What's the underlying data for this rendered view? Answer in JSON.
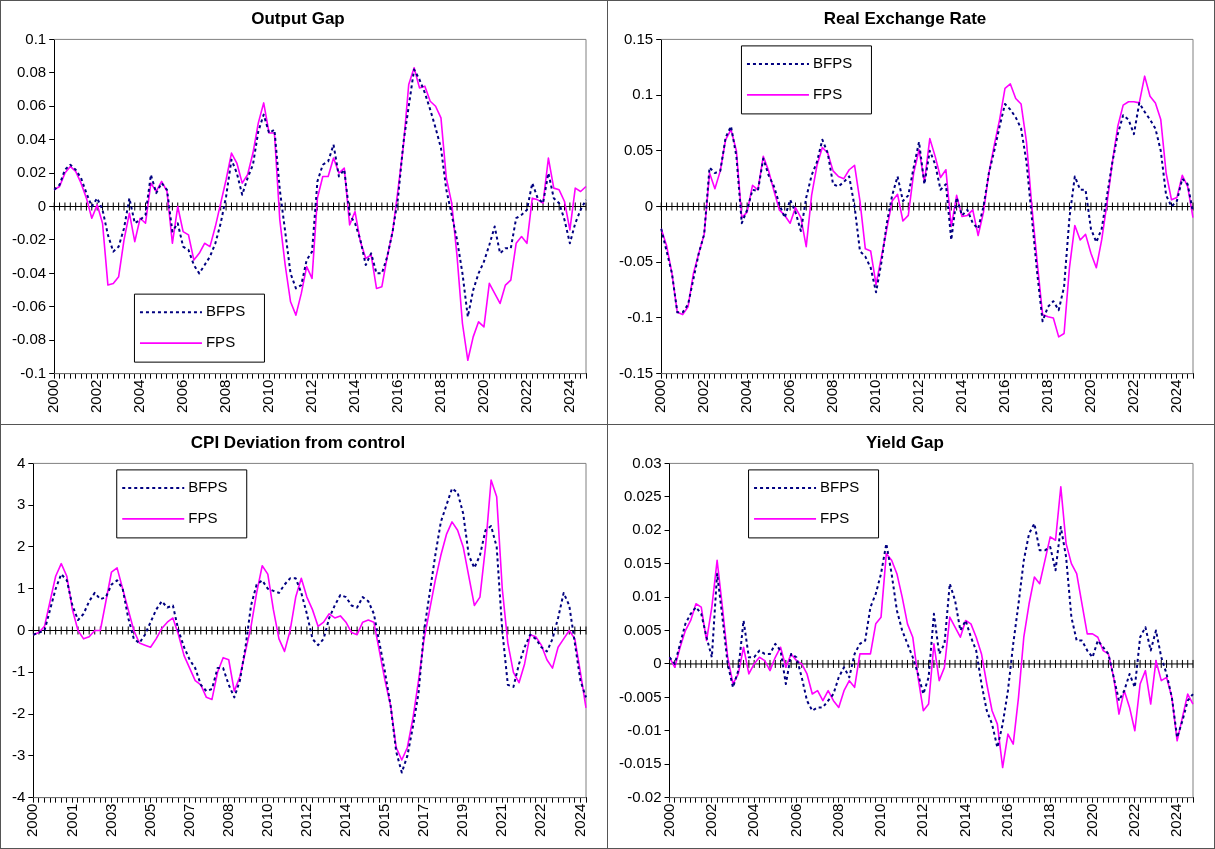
{
  "chart_data": [
    {
      "type": "line",
      "title": "Output Gap",
      "legend": "bottom left",
      "categories": [
        "2000",
        null,
        null,
        null,
        null,
        null,
        null,
        null,
        "2002",
        null,
        null,
        null,
        null,
        null,
        null,
        null,
        "2004",
        null,
        null,
        null,
        null,
        null,
        null,
        null,
        "2006",
        null,
        null,
        null,
        null,
        null,
        null,
        null,
        "2008",
        null,
        null,
        null,
        null,
        null,
        null,
        null,
        "2010",
        null,
        null,
        null,
        null,
        null,
        null,
        null,
        "2012",
        null,
        null,
        null,
        null,
        null,
        null,
        null,
        "2014",
        null,
        null,
        null,
        null,
        null,
        null,
        null,
        "2016",
        null,
        null,
        null,
        null,
        null,
        null,
        null,
        "2018",
        null,
        null,
        null,
        null,
        null,
        null,
        null,
        "2020",
        null,
        null,
        null,
        null,
        null,
        null,
        null,
        "2022",
        null,
        null,
        null,
        null,
        null,
        null,
        null,
        "2024",
        null,
        null,
        null
      ],
      "ylim": [
        -0.1,
        0.1
      ],
      "yticks": [
        -0.1,
        -0.08,
        -0.06,
        -0.04,
        -0.02,
        0,
        0.02,
        0.04,
        0.06,
        0.08,
        0.1
      ],
      "series": [
        {
          "name": "BFPS",
          "color": "#000080",
          "line_style": "dashed",
          "values": [
            0.01,
            0.013,
            0.022,
            0.025,
            0.022,
            0.017,
            0.008,
            0.0,
            0.005,
            -0.002,
            -0.017,
            -0.027,
            -0.024,
            -0.013,
            0.005,
            -0.01,
            -0.008,
            -0.005,
            0.019,
            0.008,
            0.014,
            0.01,
            -0.015,
            -0.01,
            -0.024,
            -0.026,
            -0.035,
            -0.04,
            -0.035,
            -0.03,
            -0.022,
            -0.01,
            0.006,
            0.028,
            0.02,
            0.007,
            0.017,
            0.025,
            0.045,
            0.055,
            0.044,
            0.046,
            0.01,
            -0.015,
            -0.04,
            -0.049,
            -0.047,
            -0.032,
            -0.027,
            0.015,
            0.025,
            0.027,
            0.037,
            0.018,
            0.022,
            -0.005,
            -0.01,
            -0.02,
            -0.035,
            -0.028,
            -0.04,
            -0.04,
            -0.03,
            -0.015,
            0.005,
            0.038,
            0.06,
            0.082,
            0.076,
            0.068,
            0.058,
            0.047,
            0.035,
            0.01,
            -0.005,
            -0.02,
            -0.04,
            -0.066,
            -0.05,
            -0.04,
            -0.033,
            -0.023,
            -0.012,
            -0.028,
            -0.025,
            -0.025,
            -0.007,
            -0.005,
            -0.002,
            0.014,
            0.005,
            0.002,
            0.02,
            0.005,
            0.002,
            -0.008,
            -0.022,
            -0.01,
            -0.002,
            0.004
          ]
        },
        {
          "name": "FPS",
          "color": "#ff00ff",
          "line_style": "solid",
          "values": [
            0.01,
            0.012,
            0.02,
            0.024,
            0.021,
            0.014,
            0.005,
            -0.007,
            0.001,
            -0.01,
            -0.047,
            -0.046,
            -0.042,
            -0.02,
            -0.004,
            -0.021,
            -0.007,
            -0.01,
            0.014,
            0.009,
            0.015,
            0.009,
            -0.022,
            0.0,
            -0.015,
            -0.017,
            -0.032,
            -0.028,
            -0.022,
            -0.024,
            -0.012,
            0.002,
            0.016,
            0.032,
            0.026,
            0.014,
            0.019,
            0.032,
            0.05,
            0.062,
            0.044,
            0.044,
            -0.008,
            -0.035,
            -0.057,
            -0.065,
            -0.052,
            -0.036,
            -0.043,
            0.005,
            0.018,
            0.018,
            0.029,
            0.02,
            0.023,
            -0.011,
            -0.003,
            -0.021,
            -0.031,
            -0.029,
            -0.049,
            -0.048,
            -0.03,
            -0.015,
            0.01,
            0.036,
            0.073,
            0.083,
            0.071,
            0.072,
            0.063,
            0.06,
            0.053,
            0.017,
            0.002,
            -0.03,
            -0.07,
            -0.092,
            -0.078,
            -0.069,
            -0.072,
            -0.046,
            -0.052,
            -0.058,
            -0.047,
            -0.044,
            -0.022,
            -0.018,
            -0.022,
            0.005,
            0.004,
            0.002,
            0.029,
            0.011,
            0.01,
            0.003,
            -0.014,
            0.011,
            0.009,
            0.012
          ]
        }
      ]
    },
    {
      "type": "line",
      "title": "Real Exchange Rate",
      "legend": "top left",
      "categories": [
        "2000",
        null,
        null,
        null,
        null,
        null,
        null,
        null,
        "2002",
        null,
        null,
        null,
        null,
        null,
        null,
        null,
        "2004",
        null,
        null,
        null,
        null,
        null,
        null,
        null,
        "2006",
        null,
        null,
        null,
        null,
        null,
        null,
        null,
        "2008",
        null,
        null,
        null,
        null,
        null,
        null,
        null,
        "2010",
        null,
        null,
        null,
        null,
        null,
        null,
        null,
        "2012",
        null,
        null,
        null,
        null,
        null,
        null,
        null,
        "2014",
        null,
        null,
        null,
        null,
        null,
        null,
        null,
        "2016",
        null,
        null,
        null,
        null,
        null,
        null,
        null,
        "2018",
        null,
        null,
        null,
        null,
        null,
        null,
        null,
        "2020",
        null,
        null,
        null,
        null,
        null,
        null,
        null,
        "2022",
        null,
        null,
        null,
        null,
        null,
        null,
        null,
        "2024",
        null,
        null,
        null
      ],
      "ylim": [
        -0.15,
        0.15
      ],
      "yticks": [
        -0.15,
        -0.1,
        -0.05,
        0,
        0.05,
        0.1,
        0.15
      ],
      "series": [
        {
          "name": "BFPS",
          "color": "#000080",
          "line_style": "dashed",
          "values": [
            -0.02,
            -0.04,
            -0.06,
            -0.095,
            -0.095,
            -0.088,
            -0.065,
            -0.042,
            -0.025,
            0.035,
            0.03,
            0.032,
            0.062,
            0.072,
            0.045,
            -0.015,
            -0.003,
            0.015,
            0.014,
            0.043,
            0.028,
            0.018,
            0.002,
            -0.01,
            0.006,
            -0.005,
            -0.022,
            0.008,
            0.028,
            0.04,
            0.06,
            0.048,
            0.02,
            0.018,
            0.022,
            0.027,
            0.0,
            -0.04,
            -0.045,
            -0.055,
            -0.077,
            -0.05,
            -0.015,
            0.01,
            0.027,
            0.005,
            0.01,
            0.035,
            0.058,
            0.02,
            0.05,
            0.038,
            0.015,
            0.02,
            -0.03,
            0.008,
            -0.008,
            -0.003,
            -0.015,
            -0.02,
            0.0,
            0.03,
            0.05,
            0.072,
            0.092,
            0.087,
            0.08,
            0.07,
            0.04,
            -0.01,
            -0.06,
            -0.103,
            -0.09,
            -0.085,
            -0.093,
            -0.072,
            -0.01,
            0.027,
            0.015,
            0.015,
            -0.02,
            -0.032,
            -0.02,
            0.01,
            0.04,
            0.065,
            0.082,
            0.078,
            0.065,
            0.093,
            0.085,
            0.078,
            0.07,
            0.05,
            0.01,
            0.0,
            0.005,
            0.025,
            0.02,
            -0.005
          ]
        },
        {
          "name": "FPS",
          "color": "#ff00ff",
          "line_style": "solid",
          "values": [
            -0.02,
            -0.035,
            -0.06,
            -0.095,
            -0.097,
            -0.09,
            -0.06,
            -0.042,
            -0.025,
            0.03,
            0.016,
            0.032,
            0.06,
            0.069,
            0.05,
            -0.01,
            -0.005,
            0.019,
            0.015,
            0.045,
            0.032,
            0.014,
            -0.003,
            -0.008,
            -0.015,
            -0.001,
            -0.01,
            -0.036,
            0.01,
            0.037,
            0.053,
            0.048,
            0.032,
            0.027,
            0.025,
            0.033,
            0.037,
            0.005,
            -0.038,
            -0.04,
            -0.07,
            -0.045,
            -0.02,
            0.005,
            0.011,
            -0.013,
            -0.008,
            0.03,
            0.051,
            0.022,
            0.061,
            0.045,
            0.026,
            0.033,
            -0.018,
            0.01,
            -0.009,
            -0.008,
            -0.003,
            -0.026,
            -0.005,
            0.03,
            0.055,
            0.078,
            0.106,
            0.11,
            0.097,
            0.092,
            0.058,
            0.0,
            -0.05,
            -0.097,
            -0.099,
            -0.1,
            -0.117,
            -0.114,
            -0.055,
            -0.017,
            -0.03,
            -0.025,
            -0.042,
            -0.055,
            -0.03,
            0.003,
            0.04,
            0.072,
            0.091,
            0.094,
            0.094,
            0.093,
            0.117,
            0.099,
            0.093,
            0.078,
            0.03,
            0.006,
            0.008,
            0.028,
            0.018,
            -0.01
          ]
        }
      ]
    },
    {
      "type": "line",
      "title": "CPI Deviation from control",
      "legend": "top left",
      "categories": [
        "2000",
        null,
        null,
        null,
        null,
        null,
        null,
        "2001",
        null,
        null,
        null,
        null,
        null,
        null,
        "2003",
        null,
        null,
        null,
        null,
        null,
        null,
        "2005",
        null,
        null,
        null,
        null,
        null,
        null,
        "2007",
        null,
        null,
        null,
        null,
        null,
        null,
        "2008",
        null,
        null,
        null,
        null,
        null,
        null,
        "2010",
        null,
        null,
        null,
        null,
        null,
        null,
        "2012",
        null,
        null,
        null,
        null,
        null,
        null,
        "2014",
        null,
        null,
        null,
        null,
        null,
        null,
        "2015",
        null,
        null,
        null,
        null,
        null,
        null,
        "2017",
        null,
        null,
        null,
        null,
        null,
        null,
        "2019",
        null,
        null,
        null,
        null,
        null,
        null,
        "2021",
        null,
        null,
        null,
        null,
        null,
        null,
        "2022",
        null,
        null,
        null,
        null,
        null,
        null,
        "2024",
        null
      ],
      "ylim": [
        -4,
        4
      ],
      "yticks": [
        -4,
        -3,
        -2,
        -1,
        0,
        1,
        2,
        3,
        4
      ],
      "series": [
        {
          "name": "BFPS",
          "color": "#000080",
          "line_style": "dashed",
          "values": [
            -0.1,
            -0.05,
            0.0,
            0.5,
            1.0,
            1.35,
            1.2,
            0.6,
            0.25,
            0.4,
            0.7,
            0.9,
            0.75,
            0.8,
            1.1,
            1.2,
            1.0,
            0.3,
            -0.2,
            -0.3,
            -0.1,
            0.2,
            0.5,
            0.7,
            0.55,
            0.6,
            0.0,
            -0.4,
            -0.7,
            -0.9,
            -1.3,
            -1.45,
            -1.4,
            -0.9,
            -0.9,
            -1.3,
            -1.6,
            -1.2,
            -0.4,
            0.6,
            1.1,
            1.2,
            1.0,
            0.95,
            0.9,
            1.1,
            1.25,
            1.25,
            0.9,
            0.4,
            -0.2,
            -0.35,
            -0.2,
            0.3,
            0.6,
            0.85,
            0.8,
            0.6,
            0.55,
            0.8,
            0.7,
            0.4,
            -0.3,
            -1.0,
            -1.8,
            -2.9,
            -3.4,
            -3.0,
            -2.3,
            -1.5,
            0.0,
            0.9,
            1.8,
            2.6,
            3.0,
            3.4,
            3.3,
            2.8,
            1.8,
            1.5,
            1.8,
            2.4,
            2.5,
            2.0,
            0.0,
            -1.3,
            -1.35,
            -0.8,
            -0.4,
            -0.1,
            -0.2,
            -0.4,
            -0.5,
            -0.2,
            0.3,
            0.9,
            0.6,
            -0.3,
            -1.2,
            -1.6
          ]
        },
        {
          "name": "FPS",
          "color": "#ff00ff",
          "line_style": "solid",
          "values": [
            -0.1,
            -0.05,
            0.1,
            0.7,
            1.3,
            1.6,
            1.3,
            0.5,
            0.0,
            -0.2,
            -0.15,
            0.0,
            0.0,
            0.7,
            1.4,
            1.5,
            1.0,
            0.5,
            0.0,
            -0.3,
            -0.35,
            -0.4,
            -0.2,
            0.05,
            0.2,
            0.3,
            -0.1,
            -0.6,
            -0.9,
            -1.2,
            -1.3,
            -1.6,
            -1.65,
            -1.0,
            -0.65,
            -0.7,
            -1.45,
            -1.1,
            -0.5,
            0.1,
            0.9,
            1.55,
            1.35,
            0.5,
            -0.2,
            -0.5,
            0.0,
            0.8,
            1.25,
            0.8,
            0.5,
            0.1,
            0.2,
            0.4,
            0.3,
            0.35,
            0.2,
            -0.05,
            -0.1,
            0.2,
            0.25,
            0.2,
            -0.5,
            -1.2,
            -1.8,
            -2.8,
            -3.1,
            -2.8,
            -2.1,
            -1.2,
            -0.2,
            0.5,
            1.2,
            1.8,
            2.3,
            2.6,
            2.4,
            2.0,
            1.3,
            0.6,
            0.8,
            2.0,
            3.6,
            3.2,
            1.0,
            -0.3,
            -1.0,
            -1.25,
            -0.8,
            -0.1,
            -0.15,
            -0.35,
            -0.7,
            -0.9,
            -0.4,
            -0.2,
            0.0,
            -0.2,
            -1.0,
            -1.85
          ]
        }
      ]
    },
    {
      "type": "line",
      "title": "Yield Gap",
      "legend": "top left",
      "categories": [
        "2000",
        null,
        null,
        null,
        null,
        null,
        null,
        null,
        "2002",
        null,
        null,
        null,
        null,
        null,
        null,
        null,
        "2004",
        null,
        null,
        null,
        null,
        null,
        null,
        null,
        "2006",
        null,
        null,
        null,
        null,
        null,
        null,
        null,
        "2008",
        null,
        null,
        null,
        null,
        null,
        null,
        null,
        "2010",
        null,
        null,
        null,
        null,
        null,
        null,
        null,
        "2012",
        null,
        null,
        null,
        null,
        null,
        null,
        null,
        "2014",
        null,
        null,
        null,
        null,
        null,
        null,
        null,
        "2016",
        null,
        null,
        null,
        null,
        null,
        null,
        null,
        "2018",
        null,
        null,
        null,
        null,
        null,
        null,
        null,
        "2020",
        null,
        null,
        null,
        null,
        null,
        null,
        null,
        "2022",
        null,
        null,
        null,
        null,
        null,
        null,
        null,
        "2024",
        null,
        null,
        null
      ],
      "ylim": [
        -0.02,
        0.03
      ],
      "yticks": [
        -0.02,
        -0.015,
        -0.01,
        -0.005,
        0,
        0.005,
        0.01,
        0.015,
        0.02,
        0.025,
        0.03
      ],
      "series": [
        {
          "name": "BFPS",
          "color": "#000080",
          "line_style": "dashed",
          "values": [
            0.001,
            0.0,
            0.003,
            0.006,
            0.0075,
            0.0085,
            0.0075,
            0.004,
            0.001,
            0.0135,
            0.007,
            0.0,
            -0.0035,
            -0.001,
            0.0065,
            0.001,
            0.001,
            0.002,
            0.0015,
            0.0015,
            0.003,
            0.002,
            -0.003,
            0.0015,
            0.001,
            -0.002,
            -0.0055,
            -0.007,
            -0.0065,
            -0.0065,
            -0.0055,
            -0.0045,
            -0.002,
            -0.0005,
            -0.002,
            0.0015,
            0.003,
            0.0035,
            0.0085,
            0.0105,
            0.0135,
            0.018,
            0.0135,
            0.008,
            0.005,
            0.003,
            0.001,
            -0.0015,
            -0.0045,
            -0.002,
            0.0075,
            0.0015,
            0.003,
            0.012,
            0.0095,
            0.005,
            0.0065,
            0.004,
            0.002,
            -0.003,
            -0.007,
            -0.009,
            -0.0125,
            -0.009,
            -0.004,
            0.003,
            0.009,
            0.0155,
            0.0195,
            0.021,
            0.017,
            0.017,
            0.0175,
            0.014,
            0.0205,
            0.016,
            0.007,
            0.0035,
            0.0035,
            0.002,
            0.001,
            0.0035,
            0.0025,
            0.0015,
            -0.002,
            -0.0055,
            -0.004,
            -0.0015,
            -0.0035,
            0.004,
            0.0055,
            0.002,
            0.005,
            0.001,
            -0.0015,
            -0.005,
            -0.011,
            -0.0085,
            -0.0055,
            -0.0045
          ]
        },
        {
          "name": "FPS",
          "color": "#ff00ff",
          "line_style": "solid",
          "values": [
            0.001,
            -0.0005,
            0.0025,
            0.005,
            0.0065,
            0.009,
            0.0085,
            0.0035,
            0.0085,
            0.0155,
            0.0085,
            0.001,
            -0.003,
            -0.0015,
            0.0025,
            -0.0015,
            0.0,
            0.001,
            0.0005,
            -0.001,
            0.001,
            0.0025,
            -0.0005,
            0.0015,
            0.0005,
            0.0,
            -0.0015,
            -0.0045,
            -0.004,
            -0.0055,
            -0.004,
            -0.0055,
            -0.0065,
            -0.004,
            -0.0025,
            -0.0035,
            0.0015,
            0.0015,
            0.0015,
            0.006,
            0.007,
            0.0165,
            0.0155,
            0.0135,
            0.01,
            0.006,
            0.004,
            -0.002,
            -0.007,
            -0.006,
            0.003,
            -0.0025,
            -0.0005,
            0.007,
            0.0055,
            0.004,
            0.0065,
            0.006,
            0.004,
            0.0015,
            -0.003,
            -0.007,
            -0.009,
            -0.0155,
            -0.0105,
            -0.012,
            -0.005,
            0.004,
            0.009,
            0.013,
            0.012,
            0.0155,
            0.019,
            0.0185,
            0.0265,
            0.018,
            0.015,
            0.0135,
            0.009,
            0.0045,
            0.0045,
            0.004,
            0.002,
            0.0015,
            -0.002,
            -0.0075,
            -0.004,
            -0.0065,
            -0.01,
            -0.003,
            -0.001,
            -0.006,
            0.0005,
            -0.0025,
            -0.002,
            -0.005,
            -0.0115,
            -0.008,
            -0.0045,
            -0.006
          ]
        }
      ]
    }
  ]
}
